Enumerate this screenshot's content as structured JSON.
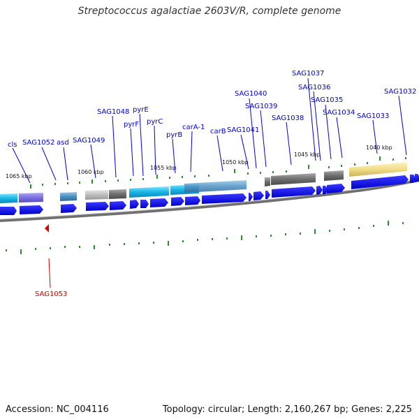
{
  "title": "Streptococcus agalactiae 2603V/R, complete genome",
  "accession": "Accession: NC_004116",
  "summary": "Topology: circular; Length: 2,160,267 bp; Genes: 2,225",
  "colors": {
    "gene_label": "#0000cc",
    "highlight_label": "#cc0000",
    "cds_arrow": "#0000ee",
    "tick": "#2e8b2e",
    "backbone": "#777777"
  },
  "scale_labels": [
    "1065 kbp",
    "1060 kbp",
    "1055 kbp",
    "1050 kbp",
    "1045 kbp",
    "1040 kbp"
  ],
  "gene_labels": [
    "cls",
    "SAG1052",
    "asd",
    "SAG1049",
    "SAG1048",
    "pyrF",
    "pyrE",
    "pyrC",
    "pyrB",
    "carA-1",
    "carB",
    "SAG1041",
    "SAG1040",
    "SAG1039",
    "SAG1038",
    "SAG1037",
    "SAG1036",
    "SAG1035",
    "SAG1034",
    "SAG1033",
    "SAG1032"
  ],
  "highlight": {
    "label": "SAG1053",
    "marker": "red-triangle"
  }
}
